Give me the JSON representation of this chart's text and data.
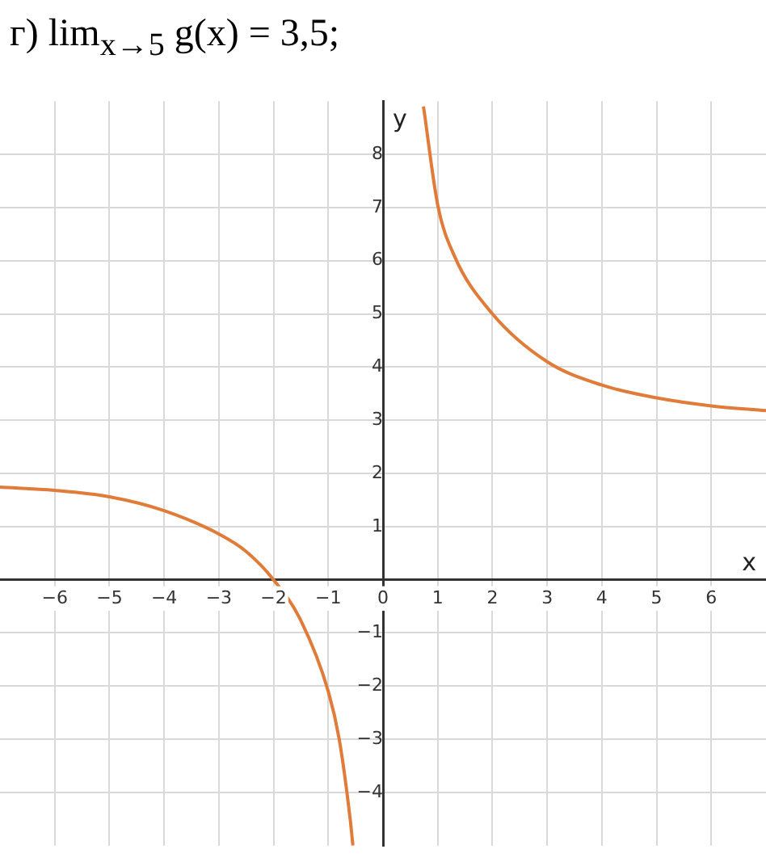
{
  "chart_data": {
    "type": "line",
    "title": "г) lim$_{x→5}$ g(x) = 3,5;",
    "xlabel": "x",
    "ylabel": "y",
    "xlim": [
      -7,
      7
    ],
    "ylim": [
      -5,
      9
    ],
    "xticks": [
      -6,
      -5,
      -4,
      -3,
      -2,
      -1,
      0,
      1,
      2,
      3,
      4,
      5,
      6
    ],
    "yticks": [
      -4,
      -3,
      -2,
      -1,
      {
        "value": 0,
        "label": null
      },
      1,
      2,
      3,
      4,
      5,
      6,
      7,
      8
    ],
    "grid": true,
    "marker": "none",
    "line_style": "solid",
    "series": [
      {
        "color": "#e07b39",
        "x": [
          -7,
          -6,
          -5,
          -4,
          -3,
          -2.5,
          -2,
          -1.5,
          -1,
          -0.8,
          -0.6,
          -0.55
        ],
        "values": [
          1.74,
          1.68,
          1.56,
          1.3,
          0.86,
          0.53,
          0,
          -0.77,
          -2.1,
          -3,
          -4.5,
          -5
        ]
      },
      {
        "color": "#e07b39",
        "x": [
          0.74,
          1,
          1.3,
          2,
          3,
          4,
          5,
          6,
          7
        ],
        "values": [
          8.9,
          7.05,
          6.1,
          5,
          4.1,
          3.66,
          3.42,
          3.27,
          3.18
        ]
      }
    ]
  }
}
